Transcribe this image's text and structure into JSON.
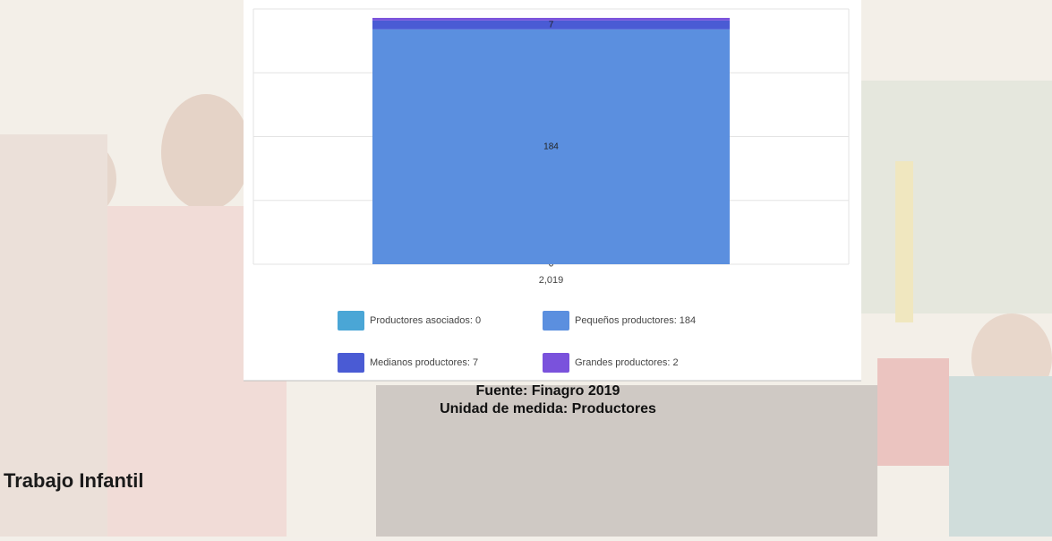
{
  "chart_data": {
    "type": "stacked-bar",
    "categories": [
      "2,019"
    ],
    "series": [
      {
        "name": "Productores asociados: 0",
        "color": "#4aa6d6",
        "values": [
          0
        ]
      },
      {
        "name": "Pequeños productores: 184",
        "color": "#5b8fdf",
        "values": [
          184
        ]
      },
      {
        "name": "Medianos productores: 7",
        "color": "#4a5bd4",
        "values": [
          7
        ]
      },
      {
        "name": "Grandes productores: 2",
        "color": "#7a52dc",
        "values": [
          2
        ]
      }
    ],
    "ylim": [
      0,
      200
    ],
    "yticks": [
      0,
      50,
      100,
      150,
      200
    ],
    "grid": true
  },
  "page": {
    "source": "Fuente: Finagro 2019",
    "unit": "Unidad de medida: Productores",
    "section_title": "Trabajo Infantil"
  }
}
